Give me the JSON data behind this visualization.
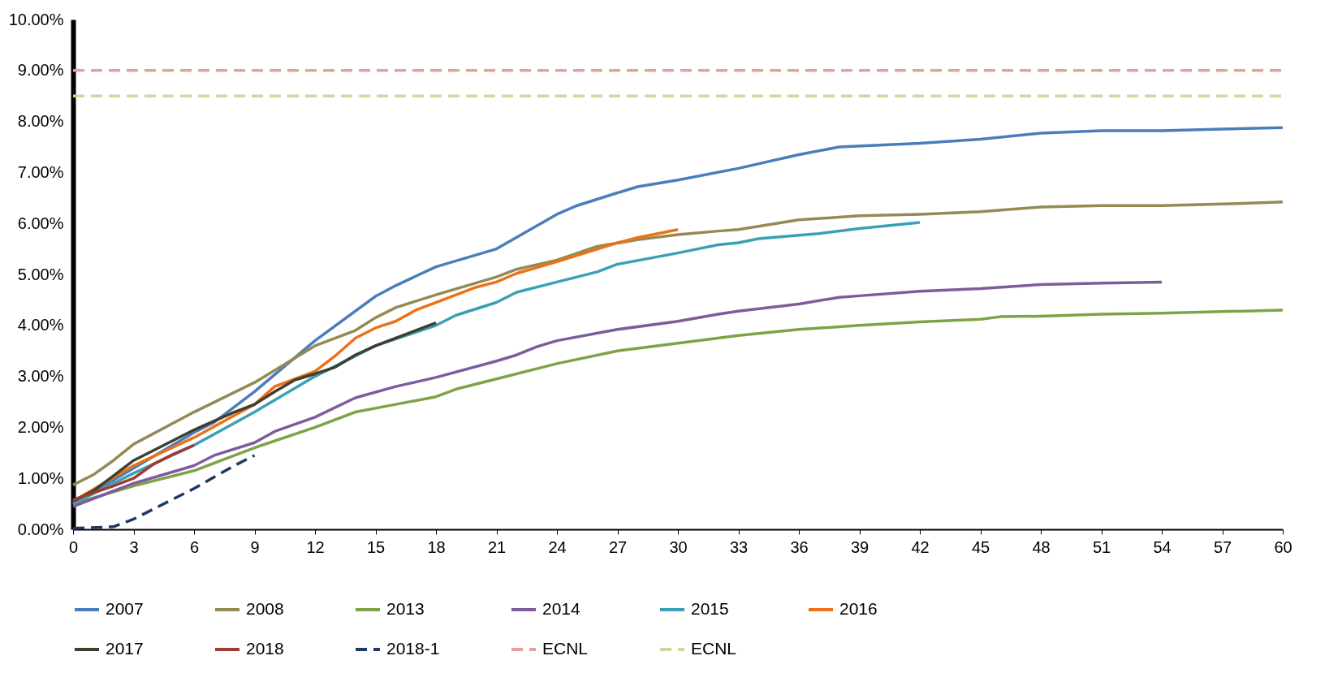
{
  "chart_data": {
    "type": "line",
    "xlim": [
      0,
      60
    ],
    "xticks": [
      0,
      3,
      6,
      9,
      12,
      15,
      18,
      21,
      24,
      27,
      30,
      33,
      36,
      39,
      42,
      45,
      48,
      51,
      54,
      57,
      60
    ],
    "ylim": [
      0,
      10
    ],
    "yticks": [
      {
        "value": 0,
        "label": "0.00%"
      },
      {
        "value": 1,
        "label": "1.00%"
      },
      {
        "value": 2,
        "label": "2.00%"
      },
      {
        "value": 3,
        "label": "3.00%"
      },
      {
        "value": 4,
        "label": "4.00%"
      },
      {
        "value": 5,
        "label": "5.00%"
      },
      {
        "value": 6,
        "label": "6.00%"
      },
      {
        "value": 7,
        "label": "7.00%"
      },
      {
        "value": 8,
        "label": "8.00%"
      },
      {
        "value": 9,
        "label": "9.00%"
      },
      {
        "value": 10,
        "label": "10.00%"
      }
    ],
    "grid": false,
    "legend": "bottom",
    "marker": "none",
    "series": [
      {
        "name": "2007",
        "color": "#4a7ebb",
        "line_style": "solid",
        "x": [
          0,
          3,
          6,
          7,
          9,
          12,
          15,
          16,
          18,
          21,
          24,
          25,
          27,
          28,
          30,
          33,
          36,
          38,
          42,
          45,
          48,
          51,
          54,
          57,
          60
        ],
        "values": [
          0.5,
          1.2,
          1.9,
          2.1,
          2.7,
          3.7,
          4.57,
          4.78,
          5.15,
          5.5,
          6.18,
          6.35,
          6.6,
          6.72,
          6.85,
          7.08,
          7.35,
          7.5,
          7.57,
          7.65,
          7.77,
          7.82,
          7.82,
          7.85,
          7.88
        ]
      },
      {
        "name": "2008",
        "color": "#948a54",
        "line_style": "solid",
        "x": [
          0,
          1,
          2,
          3,
          6,
          9,
          12,
          14,
          15,
          16,
          18,
          21,
          22,
          24,
          26,
          28,
          30,
          32,
          33,
          36,
          39,
          42,
          45,
          48,
          51,
          54,
          57,
          60
        ],
        "values": [
          0.87,
          1.07,
          1.35,
          1.67,
          2.3,
          2.88,
          3.6,
          3.9,
          4.15,
          4.35,
          4.6,
          4.95,
          5.1,
          5.28,
          5.55,
          5.68,
          5.78,
          5.85,
          5.88,
          6.07,
          6.15,
          6.18,
          6.23,
          6.32,
          6.35,
          6.35,
          6.38,
          6.42
        ]
      },
      {
        "name": "2013",
        "color": "#7ea345",
        "line_style": "solid",
        "x": [
          0,
          3,
          6,
          9,
          12,
          14,
          16,
          18,
          19,
          21,
          24,
          27,
          30,
          33,
          36,
          39,
          42,
          45,
          46,
          48,
          51,
          54,
          57,
          60
        ],
        "values": [
          0.5,
          0.85,
          1.15,
          1.6,
          2.0,
          2.3,
          2.45,
          2.6,
          2.75,
          2.95,
          3.25,
          3.5,
          3.65,
          3.8,
          3.92,
          4.0,
          4.07,
          4.12,
          4.17,
          4.18,
          4.22,
          4.24,
          4.27,
          4.3
        ]
      },
      {
        "name": "2014",
        "color": "#7d5c9b",
        "line_style": "solid",
        "x": [
          0,
          3,
          6,
          7,
          9,
          10,
          12,
          14,
          16,
          18,
          21,
          22,
          23,
          24,
          27,
          30,
          32,
          33,
          36,
          38,
          39,
          42,
          45,
          48,
          51,
          54
        ],
        "values": [
          0.45,
          0.9,
          1.25,
          1.45,
          1.7,
          1.92,
          2.2,
          2.58,
          2.8,
          2.98,
          3.3,
          3.42,
          3.58,
          3.7,
          3.92,
          4.08,
          4.22,
          4.28,
          4.42,
          4.55,
          4.58,
          4.67,
          4.72,
          4.8,
          4.83,
          4.85
        ]
      },
      {
        "name": "2015",
        "color": "#3aa0b5",
        "line_style": "solid",
        "x": [
          0,
          3,
          6,
          9,
          12,
          15,
          18,
          19,
          21,
          22,
          24,
          26,
          27,
          30,
          32,
          33,
          34,
          36,
          37,
          39,
          42
        ],
        "values": [
          0.5,
          1.1,
          1.65,
          2.3,
          3.0,
          3.6,
          4.0,
          4.2,
          4.45,
          4.65,
          4.85,
          5.05,
          5.2,
          5.42,
          5.58,
          5.62,
          5.7,
          5.77,
          5.8,
          5.9,
          6.02
        ]
      },
      {
        "name": "2016",
        "color": "#ec7118",
        "line_style": "solid",
        "x": [
          0,
          3,
          6,
          9,
          10,
          12,
          13,
          14,
          15,
          16,
          17,
          18,
          20,
          21,
          22,
          24,
          27,
          28,
          30
        ],
        "values": [
          0.55,
          1.25,
          1.8,
          2.45,
          2.8,
          3.1,
          3.4,
          3.75,
          3.95,
          4.08,
          4.3,
          4.45,
          4.75,
          4.85,
          5.02,
          5.25,
          5.62,
          5.72,
          5.88
        ]
      },
      {
        "name": "2017",
        "color": "#3f3f2f",
        "line_style": "solid",
        "x": [
          0,
          1,
          2,
          3,
          6,
          8,
          9,
          10,
          11,
          12,
          13,
          14,
          15,
          18
        ],
        "values": [
          0.55,
          0.75,
          1.05,
          1.35,
          1.95,
          2.3,
          2.45,
          2.7,
          2.93,
          3.05,
          3.18,
          3.42,
          3.6,
          4.05
        ]
      },
      {
        "name": "2018",
        "color": "#a03a34",
        "line_style": "solid",
        "x": [
          0,
          2,
          3,
          4,
          5,
          6
        ],
        "values": [
          0.58,
          0.85,
          1.0,
          1.28,
          1.48,
          1.65
        ]
      },
      {
        "name": "2018-1",
        "color": "#1f3864",
        "line_style": "dashed",
        "x": [
          0,
          2,
          3,
          5,
          6,
          8,
          9
        ],
        "values": [
          0.02,
          0.05,
          0.2,
          0.6,
          0.8,
          1.25,
          1.45
        ]
      },
      {
        "name": "ECNL",
        "color": "#e6a09c",
        "line_style": "dashed",
        "x": [
          0,
          60
        ],
        "values": [
          9,
          9
        ]
      },
      {
        "name": "ECNL",
        "color": "#c5dc9a",
        "line_style": "dashed",
        "x": [
          0,
          60
        ],
        "values": [
          8.5,
          8.5
        ]
      }
    ]
  }
}
